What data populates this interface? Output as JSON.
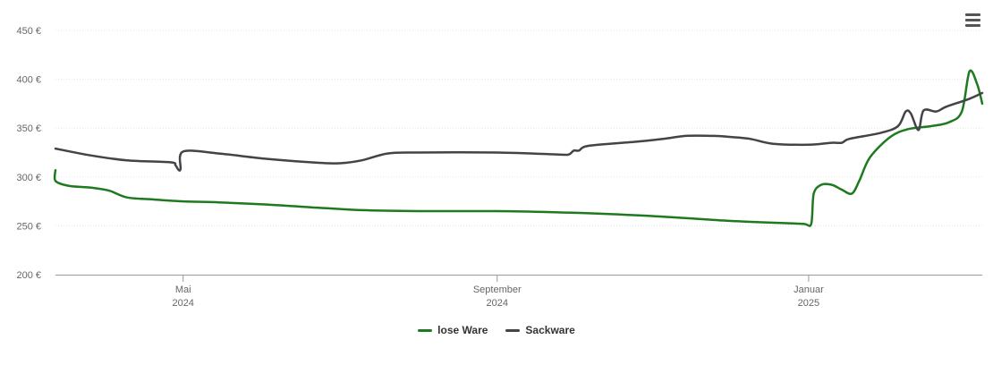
{
  "menu": {
    "icon": "hamburger-menu-icon"
  },
  "chart_data": {
    "type": "line",
    "title": "",
    "xlabel": "",
    "ylabel": "",
    "ylim": [
      200,
      450
    ],
    "y_ticks": [
      "200 €",
      "250 €",
      "300 €",
      "350 €",
      "400 €",
      "450 €"
    ],
    "y_tick_values": [
      200,
      250,
      300,
      350,
      400,
      450
    ],
    "x_range": [
      "2024-03-12",
      "2025-03-10"
    ],
    "x_ticks": [
      {
        "date": "2024-05-01",
        "label": "Mai",
        "year": "2024"
      },
      {
        "date": "2024-09-01",
        "label": "September",
        "year": "2024"
      },
      {
        "date": "2025-01-01",
        "label": "Januar",
        "year": "2025"
      }
    ],
    "grid": true,
    "legend_placement": "bottom",
    "series": [
      {
        "name": "lose Ware",
        "color": "#1f7a1f",
        "points": [
          [
            "2024-03-12",
            307
          ],
          [
            "2024-03-12",
            296
          ],
          [
            "2024-03-17",
            291
          ],
          [
            "2024-03-26",
            289
          ],
          [
            "2024-04-02",
            286
          ],
          [
            "2024-04-09",
            279
          ],
          [
            "2024-04-19",
            277
          ],
          [
            "2024-05-01",
            275
          ],
          [
            "2024-05-15",
            274
          ],
          [
            "2024-06-01",
            272
          ],
          [
            "2024-06-20",
            269
          ],
          [
            "2024-07-10",
            266
          ],
          [
            "2024-08-01",
            265
          ],
          [
            "2024-09-01",
            265
          ],
          [
            "2024-09-22",
            264
          ],
          [
            "2024-10-15",
            262
          ],
          [
            "2024-11-07",
            259
          ],
          [
            "2024-12-01",
            255
          ],
          [
            "2024-12-20",
            253
          ],
          [
            "2024-12-30",
            252
          ],
          [
            "2025-01-02",
            252
          ],
          [
            "2025-01-03",
            283
          ],
          [
            "2025-01-06",
            292
          ],
          [
            "2025-01-10",
            292
          ],
          [
            "2025-01-14",
            287
          ],
          [
            "2025-01-18",
            283
          ],
          [
            "2025-01-21",
            297
          ],
          [
            "2025-01-25",
            320
          ],
          [
            "2025-02-02",
            341
          ],
          [
            "2025-02-09",
            349
          ],
          [
            "2025-02-18",
            352
          ],
          [
            "2025-02-25",
            356
          ],
          [
            "2025-03-02",
            367
          ],
          [
            "2025-03-05",
            408
          ],
          [
            "2025-03-08",
            395
          ],
          [
            "2025-03-10",
            375
          ]
        ]
      },
      {
        "name": "Sackware",
        "color": "#434348",
        "points": [
          [
            "2024-03-12",
            329
          ],
          [
            "2024-03-26",
            322
          ],
          [
            "2024-04-09",
            317
          ],
          [
            "2024-04-26",
            315
          ],
          [
            "2024-04-28",
            312
          ],
          [
            "2024-04-29",
            308
          ],
          [
            "2024-04-30",
            308
          ],
          [
            "2024-05-01",
            326
          ],
          [
            "2024-05-15",
            324
          ],
          [
            "2024-06-01",
            319
          ],
          [
            "2024-06-20",
            315
          ],
          [
            "2024-07-01",
            314
          ],
          [
            "2024-07-10",
            317
          ],
          [
            "2024-07-20",
            324
          ],
          [
            "2024-08-01",
            325
          ],
          [
            "2024-09-01",
            325
          ],
          [
            "2024-09-25",
            323
          ],
          [
            "2024-09-29",
            323
          ],
          [
            "2024-10-01",
            327
          ],
          [
            "2024-10-03",
            327
          ],
          [
            "2024-10-07",
            332
          ],
          [
            "2024-10-25",
            336
          ],
          [
            "2024-11-05",
            339
          ],
          [
            "2024-11-14",
            342
          ],
          [
            "2024-11-25",
            342
          ],
          [
            "2024-12-01",
            341
          ],
          [
            "2024-12-09",
            339
          ],
          [
            "2024-12-18",
            334
          ],
          [
            "2025-01-01",
            333
          ],
          [
            "2025-01-10",
            335
          ],
          [
            "2025-01-14",
            335
          ],
          [
            "2025-01-17",
            339
          ],
          [
            "2025-01-29",
            345
          ],
          [
            "2025-02-05",
            352
          ],
          [
            "2025-02-08",
            367
          ],
          [
            "2025-02-10",
            365
          ],
          [
            "2025-02-13",
            348
          ],
          [
            "2025-02-15",
            368
          ],
          [
            "2025-02-20",
            367
          ],
          [
            "2025-02-24",
            372
          ],
          [
            "2025-03-05",
            380
          ],
          [
            "2025-03-10",
            386
          ]
        ]
      }
    ]
  }
}
